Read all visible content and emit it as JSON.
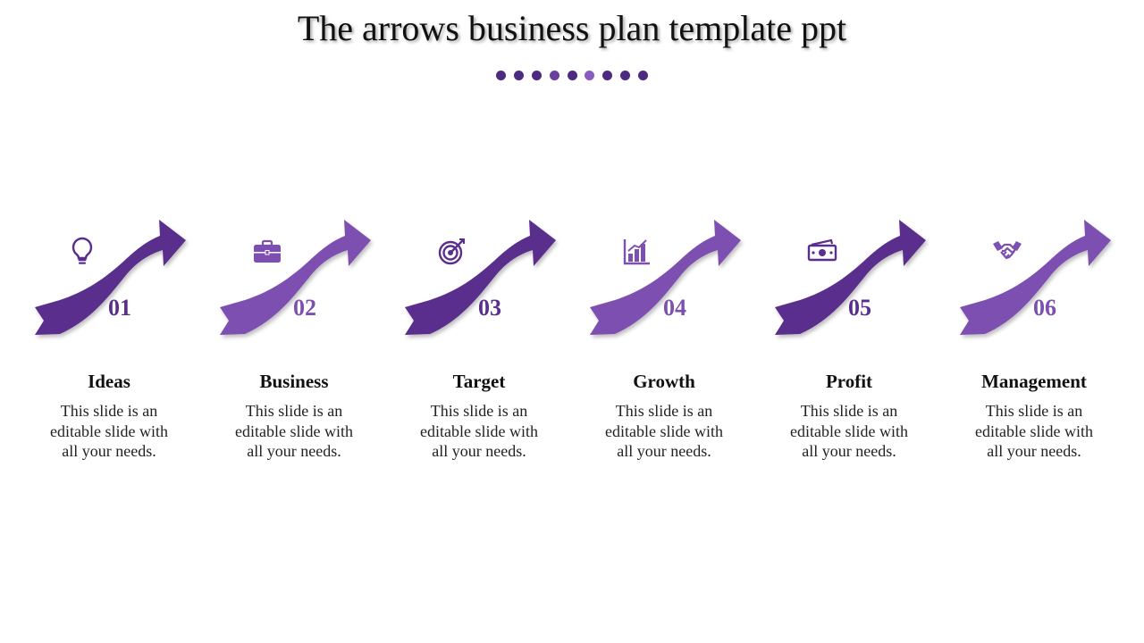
{
  "title": "The arrows business plan template ppt",
  "dots": [
    "#4b2a80",
    "#4b2a80",
    "#4b2a80",
    "#6a3f9e",
    "#4b2a80",
    "#8a5cc1",
    "#4b2a80",
    "#4b2a80",
    "#4b2a80"
  ],
  "steps": [
    {
      "number": "01",
      "heading": "Ideas",
      "description": "This slide is an editable slide with all your needs.",
      "icon": "lightbulb-icon",
      "color": "#5a2e8c"
    },
    {
      "number": "02",
      "heading": "Business",
      "description": "This slide is an editable slide with all your needs.",
      "icon": "briefcase-icon",
      "color": "#7c4fb0"
    },
    {
      "number": "03",
      "heading": "Target",
      "description": "This slide is an editable slide with all your needs.",
      "icon": "target-icon",
      "color": "#5a2e8c"
    },
    {
      "number": "04",
      "heading": "Growth",
      "description": "This slide is an editable slide with all your needs.",
      "icon": "bar-chart-icon",
      "color": "#7c4fb0"
    },
    {
      "number": "05",
      "heading": "Profit",
      "description": "This slide is an editable slide with all your needs.",
      "icon": "money-icon",
      "color": "#5a2e8c"
    },
    {
      "number": "06",
      "heading": "Management",
      "description": "This slide is an editable slide with all your needs.",
      "icon": "handshake-icon",
      "color": "#7c4fb0"
    }
  ]
}
